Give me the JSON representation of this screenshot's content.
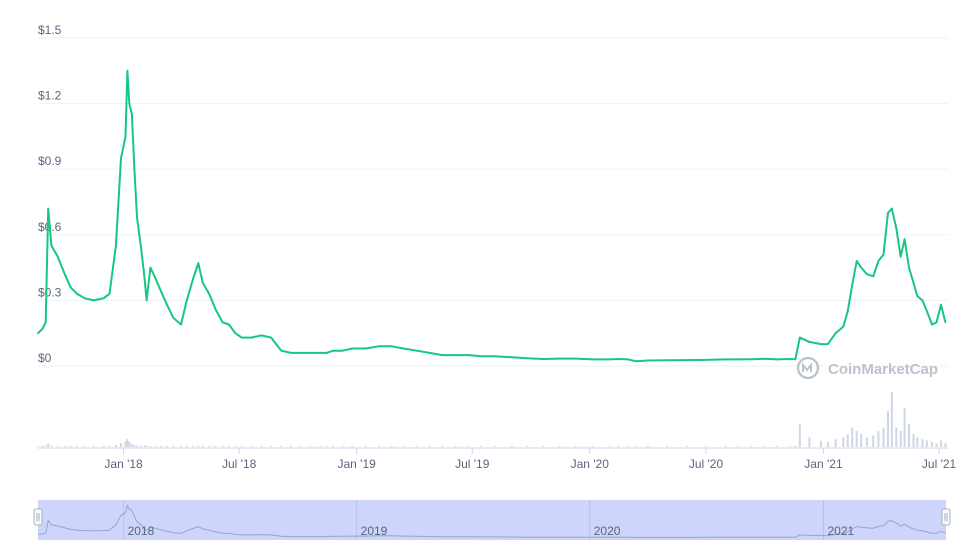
{
  "chart_data": {
    "type": "line",
    "title": "",
    "xlabel": "",
    "ylabel": "",
    "ylim": [
      0,
      1.5
    ],
    "y_ticks": [
      "$0",
      "$0.3",
      "$0.6",
      "$0.9",
      "$1.2",
      "$1.5"
    ],
    "x_ticks": [
      "Jan '18",
      "Jul '18",
      "Jan '19",
      "Jul '19",
      "Jan '20",
      "Jul '20",
      "Jan '21",
      "Jul '21"
    ],
    "navigator_labels": [
      "2018",
      "2019",
      "2020",
      "2021"
    ],
    "grid": true,
    "legend": "none",
    "line_color": "#16c784",
    "volume_color": "#cfd6e4",
    "navigator_fill": "#cdd5fb",
    "watermark": "CoinMarketCap",
    "x": [
      "2017-08-20",
      "2017-08-27",
      "2017-09-01",
      "2017-09-05",
      "2017-09-10",
      "2017-09-20",
      "2017-10-01",
      "2017-10-10",
      "2017-10-20",
      "2017-11-01",
      "2017-11-15",
      "2017-12-01",
      "2017-12-10",
      "2017-12-20",
      "2017-12-28",
      "2018-01-04",
      "2018-01-07",
      "2018-01-10",
      "2018-01-14",
      "2018-01-18",
      "2018-01-22",
      "2018-01-28",
      "2018-02-03",
      "2018-02-06",
      "2018-02-12",
      "2018-02-20",
      "2018-03-01",
      "2018-03-10",
      "2018-03-20",
      "2018-04-01",
      "2018-04-10",
      "2018-04-20",
      "2018-04-28",
      "2018-05-05",
      "2018-05-15",
      "2018-05-25",
      "2018-06-05",
      "2018-06-15",
      "2018-06-25",
      "2018-07-05",
      "2018-07-20",
      "2018-08-05",
      "2018-08-20",
      "2018-09-05",
      "2018-09-20",
      "2018-10-05",
      "2018-10-20",
      "2018-11-05",
      "2018-11-15",
      "2018-11-25",
      "2018-12-10",
      "2018-12-25",
      "2019-01-15",
      "2019-02-05",
      "2019-02-25",
      "2019-03-15",
      "2019-04-05",
      "2019-04-25",
      "2019-05-15",
      "2019-06-05",
      "2019-06-25",
      "2019-07-15",
      "2019-08-05",
      "2019-09-01",
      "2019-09-25",
      "2019-10-20",
      "2019-11-15",
      "2019-12-10",
      "2020-01-05",
      "2020-02-01",
      "2020-02-15",
      "2020-03-01",
      "2020-03-13",
      "2020-04-01",
      "2020-05-01",
      "2020-06-01",
      "2020-07-01",
      "2020-08-01",
      "2020-08-20",
      "2020-09-10",
      "2020-10-01",
      "2020-10-20",
      "2020-11-10",
      "2020-11-18",
      "2020-11-25",
      "2020-12-10",
      "2020-12-28",
      "2021-01-08",
      "2021-01-20",
      "2021-02-01",
      "2021-02-08",
      "2021-02-15",
      "2021-02-22",
      "2021-03-01",
      "2021-03-10",
      "2021-03-20",
      "2021-03-28",
      "2021-04-05",
      "2021-04-12",
      "2021-04-18",
      "2021-04-25",
      "2021-05-02",
      "2021-05-08",
      "2021-05-15",
      "2021-05-22",
      "2021-05-28",
      "2021-06-05",
      "2021-06-12",
      "2021-06-20",
      "2021-06-27",
      "2021-07-04",
      "2021-07-11"
    ],
    "series": [
      {
        "values": [
          0.15,
          0.17,
          0.2,
          0.72,
          0.55,
          0.5,
          0.42,
          0.36,
          0.33,
          0.31,
          0.3,
          0.31,
          0.33,
          0.55,
          0.95,
          1.05,
          1.35,
          1.2,
          1.15,
          0.9,
          0.68,
          0.55,
          0.4,
          0.3,
          0.45,
          0.4,
          0.34,
          0.28,
          0.22,
          0.19,
          0.3,
          0.4,
          0.47,
          0.38,
          0.33,
          0.26,
          0.2,
          0.19,
          0.15,
          0.13,
          0.13,
          0.14,
          0.13,
          0.07,
          0.06,
          0.06,
          0.06,
          0.06,
          0.06,
          0.07,
          0.07,
          0.08,
          0.08,
          0.09,
          0.09,
          0.08,
          0.07,
          0.06,
          0.05,
          0.05,
          0.05,
          0.045,
          0.045,
          0.04,
          0.035,
          0.032,
          0.034,
          0.034,
          0.03,
          0.03,
          0.032,
          0.03,
          0.022,
          0.025,
          0.026,
          0.027,
          0.028,
          0.03,
          0.03,
          0.031,
          0.033,
          0.03,
          0.032,
          0.031,
          0.13,
          0.11,
          0.1,
          0.1,
          0.15,
          0.18,
          0.25,
          0.37,
          0.48,
          0.45,
          0.42,
          0.41,
          0.48,
          0.51,
          0.7,
          0.72,
          0.63,
          0.5,
          0.58,
          0.45,
          0.38,
          0.32,
          0.3,
          0.25,
          0.19,
          0.2,
          0.28,
          0.2
        ]
      }
    ],
    "volume": [
      0.01,
      0.02,
      0.015,
      0.05,
      0.02,
      0.01,
      0.01,
      0.01,
      0.01,
      0.01,
      0.01,
      0.01,
      0.02,
      0.03,
      0.06,
      0.09,
      0.12,
      0.08,
      0.05,
      0.03,
      0.02,
      0.02,
      0.02,
      0.02,
      0.01,
      0.01,
      0.01,
      0.01,
      0.01,
      0.01,
      0.01,
      0.02,
      0.02,
      0.01,
      0.01,
      0.01,
      0.01,
      0.005,
      0.005,
      0.005,
      0.005,
      0.005,
      0.005,
      0.005,
      0.005,
      0.005,
      0.005,
      0.005,
      0.005,
      0.005,
      0.005,
      0.005,
      0.005,
      0.005,
      0.005,
      0.005,
      0.005,
      0.005,
      0.005,
      0.005,
      0.005,
      0.005,
      0.005,
      0.005,
      0.005,
      0.005,
      0.005,
      0.005,
      0.005,
      0.005,
      0.005,
      0.005,
      0.005,
      0.005,
      0.005,
      0.005,
      0.005,
      0.005,
      0.005,
      0.005,
      0.005,
      0.005,
      0.005,
      0.01,
      0.35,
      0.15,
      0.1,
      0.08,
      0.12,
      0.15,
      0.2,
      0.3,
      0.25,
      0.2,
      0.15,
      0.18,
      0.25,
      0.3,
      0.55,
      0.85,
      0.3,
      0.25,
      0.6,
      0.35,
      0.2,
      0.15,
      0.12,
      0.1,
      0.08,
      0.06,
      0.1,
      0.06
    ]
  }
}
